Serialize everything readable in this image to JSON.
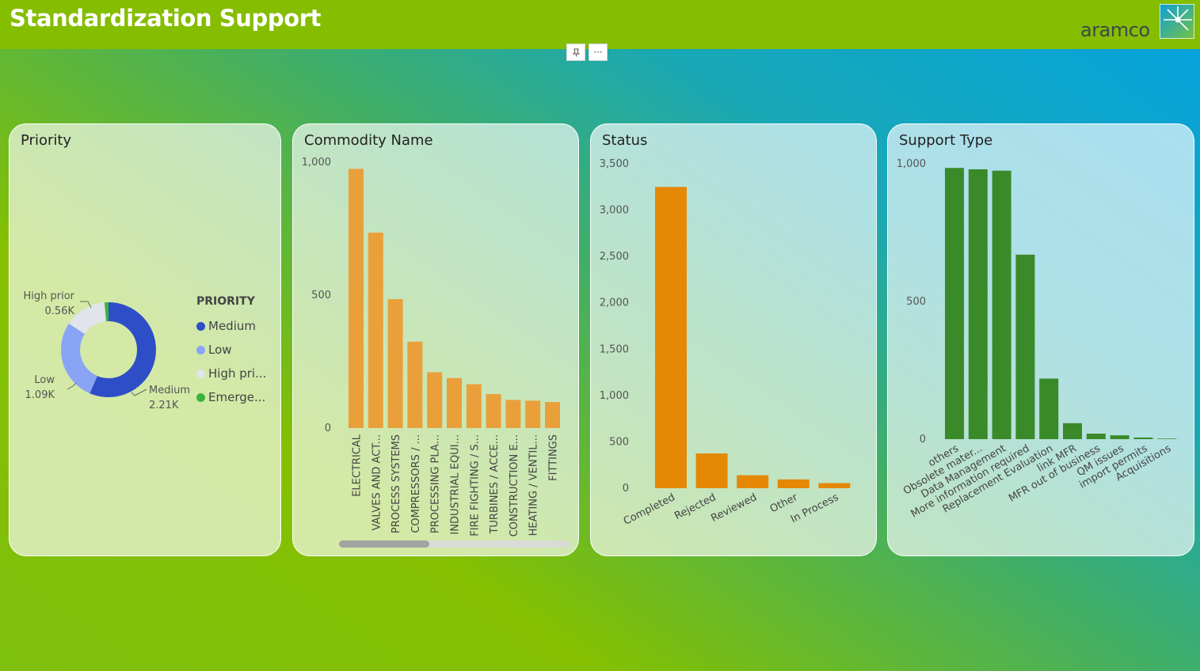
{
  "header": {
    "title": "Standardization Support",
    "logo_text": "aramco",
    "logo_icon": "aramco-star-icon",
    "pin_icon": "pin-icon",
    "more_icon": "more-options-icon",
    "more_label": "···",
    "background_color": "#85bd00"
  },
  "priority": {
    "title": "Priority",
    "legend_title": "PRIORITY",
    "legend_items": [
      {
        "label": "Medium",
        "color": "#2e4ec8"
      },
      {
        "label": "Low",
        "color": "#8aa4f5"
      },
      {
        "label": "High pri...",
        "color": "#e1e4ea"
      },
      {
        "label": "Emerge...",
        "color": "#3ab43a"
      }
    ],
    "labels": {
      "high_name": "High prior",
      "high_value": "0.56K",
      "low_name": "Low",
      "low_value": "1.09K",
      "medium_name": "Medium",
      "medium_value": "2.21K"
    }
  },
  "commodity": {
    "title": "Commodity Name",
    "scroll_position": 0.39
  },
  "status": {
    "title": "Status"
  },
  "support": {
    "title": "Support Type"
  },
  "chart_data": [
    {
      "type": "pie",
      "title": "Priority",
      "categories": [
        "Medium",
        "Low",
        "High priority",
        "Emergency"
      ],
      "values": [
        2210,
        1090,
        560,
        60
      ],
      "colors": [
        "#2e4ec8",
        "#8aa4f5",
        "#e1e4ea",
        "#3ab43a"
      ],
      "legend": "right"
    },
    {
      "type": "bar",
      "title": "Commodity Name",
      "categories": [
        "ELECTRICAL",
        "VALVES AND ACT...",
        "PROCESS SYSTEMS",
        "COMPRESSORS / ...",
        "PROCESSING PLA...",
        "INDUSTRIAL EQUI...",
        "FIRE FIGHTING / S...",
        "TURBINES / ACCE...",
        "CONSTRUCTION E...",
        "HEATING / VENTIL...",
        "FITTINGS"
      ],
      "values": [
        975,
        735,
        485,
        325,
        210,
        188,
        165,
        128,
        106,
        103,
        98
      ],
      "ylim": [
        0,
        1000
      ],
      "yticks": [
        0,
        500,
        1000
      ],
      "ytick_labels": [
        "0",
        "500",
        "1,000"
      ],
      "color": "#eaa03a"
    },
    {
      "type": "bar",
      "title": "Status",
      "categories": [
        "Completed",
        "Rejected",
        "Reviewed",
        "Other",
        "In Process"
      ],
      "values": [
        3250,
        375,
        140,
        95,
        55
      ],
      "ylim": [
        0,
        3500
      ],
      "yticks": [
        0,
        500,
        1000,
        1500,
        2000,
        2500,
        3000,
        3500
      ],
      "ytick_labels": [
        "0",
        "500",
        "1,000",
        "1,500",
        "2,000",
        "2,500",
        "3,000",
        "3,500"
      ],
      "color": "#e48806"
    },
    {
      "type": "bar",
      "title": "Support Type",
      "categories": [
        "others",
        "Obsolete mater...",
        "Data Management",
        "More information required",
        "Replacement Evaluation",
        "link MFR",
        "MFR out of business",
        "QM issues",
        "import permits",
        "Acquisitions"
      ],
      "values": [
        985,
        980,
        975,
        670,
        220,
        58,
        20,
        14,
        6,
        2
      ],
      "ylim": [
        0,
        1000
      ],
      "yticks": [
        0,
        500,
        1000
      ],
      "ytick_labels": [
        "0",
        "500",
        "1,000"
      ],
      "color": "#3a8a2a"
    }
  ]
}
